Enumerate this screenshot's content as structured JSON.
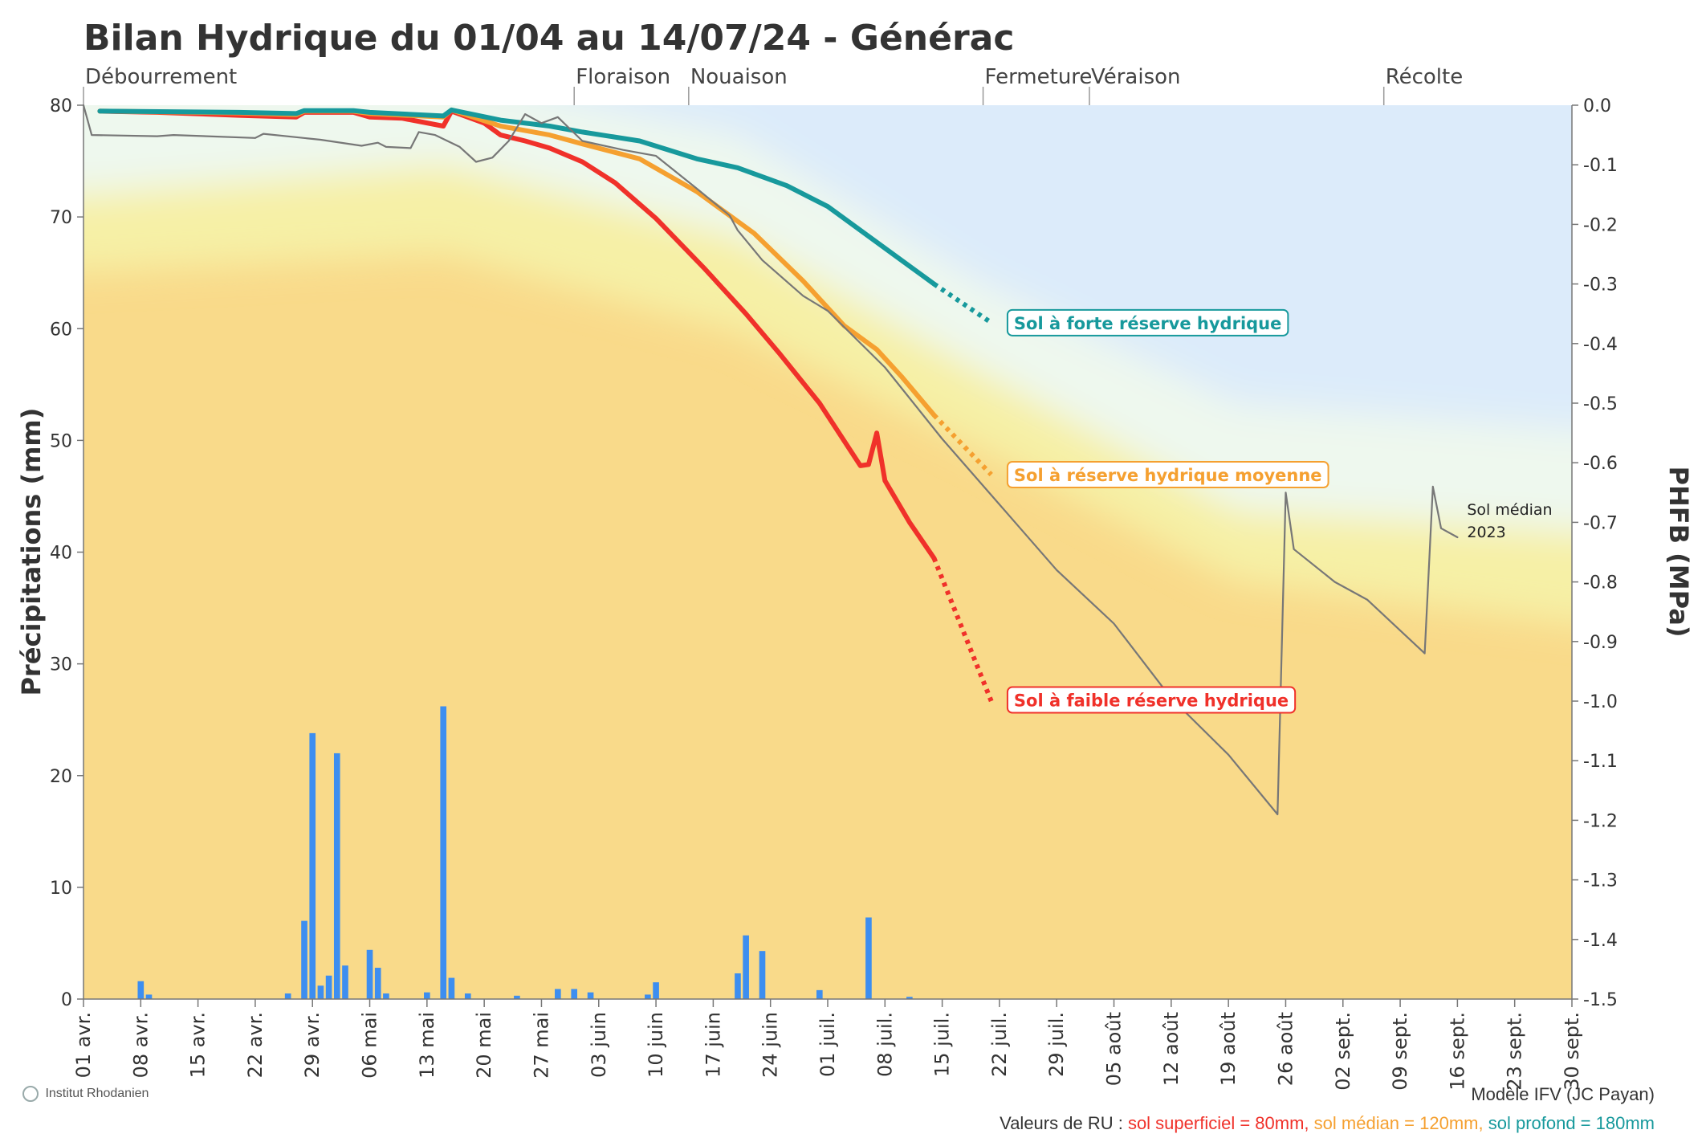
{
  "chart_data": {
    "type": "line",
    "title": "Bilan Hydrique du 01/04 au 14/07/24 - Générac",
    "ylabel": "Précipitations (mm)",
    "y2label": "PHFB (MPa)",
    "ylim": [
      0,
      80
    ],
    "y2lim": [
      -1.5,
      0.0
    ],
    "xlim": [
      "2024-04-01",
      "2024-09-30"
    ],
    "x_ticks": [
      "01 avr.",
      "08 avr.",
      "15 avr.",
      "22 avr.",
      "29 avr.",
      "06 mai",
      "13 mai",
      "20 mai",
      "27 mai",
      "03 juin",
      "10 juin",
      "17 juin",
      "24 juin",
      "01 juil.",
      "08 juil.",
      "15 juil.",
      "22 juil.",
      "29 juil.",
      "05 août",
      "12 août",
      "19 août",
      "26 août",
      "02 sept.",
      "09 sept.",
      "16 sept.",
      "23 sept.",
      "30 sept."
    ],
    "y_ticks": [
      0,
      10,
      20,
      30,
      40,
      50,
      60,
      70,
      80
    ],
    "y2_ticks": [
      "0.0",
      "-0.1",
      "-0.2",
      "-0.3",
      "-0.4",
      "-0.5",
      "-0.6",
      "-0.7",
      "-0.8",
      "-0.9",
      "-1.0",
      "-1.1",
      "-1.2",
      "-1.3",
      "-1.4",
      "-1.5"
    ],
    "stages": [
      {
        "name": "Débourrement",
        "date": "2024-04-01"
      },
      {
        "name": "Floraison",
        "date": "2024-05-31"
      },
      {
        "name": "Nouaison",
        "date": "2024-06-14"
      },
      {
        "name": "Fermeture",
        "date": "2024-07-20"
      },
      {
        "name": "Véraison",
        "date": "2024-08-02"
      },
      {
        "name": "Récolte",
        "date": "2024-09-07"
      }
    ],
    "precipitation": [
      {
        "date": "2024-04-08",
        "mm": 1.6
      },
      {
        "date": "2024-04-09",
        "mm": 0.4
      },
      {
        "date": "2024-04-26",
        "mm": 0.5
      },
      {
        "date": "2024-04-28",
        "mm": 7.0
      },
      {
        "date": "2024-04-29",
        "mm": 23.8
      },
      {
        "date": "2024-04-30",
        "mm": 1.2
      },
      {
        "date": "2024-05-01",
        "mm": 2.1
      },
      {
        "date": "2024-05-02",
        "mm": 22.0
      },
      {
        "date": "2024-05-03",
        "mm": 3.0
      },
      {
        "date": "2024-05-06",
        "mm": 4.4
      },
      {
        "date": "2024-05-07",
        "mm": 2.8
      },
      {
        "date": "2024-05-08",
        "mm": 0.5
      },
      {
        "date": "2024-05-13",
        "mm": 0.6
      },
      {
        "date": "2024-05-15",
        "mm": 26.2
      },
      {
        "date": "2024-05-16",
        "mm": 1.9
      },
      {
        "date": "2024-05-18",
        "mm": 0.5
      },
      {
        "date": "2024-05-24",
        "mm": 0.3
      },
      {
        "date": "2024-05-29",
        "mm": 0.9
      },
      {
        "date": "2024-05-31",
        "mm": 0.9
      },
      {
        "date": "2024-06-02",
        "mm": 0.6
      },
      {
        "date": "2024-06-09",
        "mm": 0.4
      },
      {
        "date": "2024-06-10",
        "mm": 1.5
      },
      {
        "date": "2024-06-20",
        "mm": 2.3
      },
      {
        "date": "2024-06-21",
        "mm": 5.7
      },
      {
        "date": "2024-06-23",
        "mm": 4.3
      },
      {
        "date": "2024-06-30",
        "mm": 0.8
      },
      {
        "date": "2024-07-06",
        "mm": 7.3
      },
      {
        "date": "2024-07-11",
        "mm": 0.2
      }
    ],
    "series": [
      {
        "name": "Sol à faible réserve hydrique",
        "color": "#f0312a",
        "values": [
          [
            "2024-04-03",
            -0.01
          ],
          [
            "2024-04-10",
            -0.012
          ],
          [
            "2024-04-20",
            -0.017
          ],
          [
            "2024-04-27",
            -0.02
          ],
          [
            "2024-04-28",
            -0.012
          ],
          [
            "2024-05-04",
            -0.012
          ],
          [
            "2024-05-06",
            -0.02
          ],
          [
            "2024-05-10",
            -0.022
          ],
          [
            "2024-05-15",
            -0.035
          ],
          [
            "2024-05-16",
            -0.01
          ],
          [
            "2024-05-20",
            -0.03
          ],
          [
            "2024-05-22",
            -0.05
          ],
          [
            "2024-05-25",
            -0.06
          ],
          [
            "2024-05-28",
            -0.072
          ],
          [
            "2024-06-01",
            -0.095
          ],
          [
            "2024-06-05",
            -0.13
          ],
          [
            "2024-06-10",
            -0.19
          ],
          [
            "2024-06-16",
            -0.275
          ],
          [
            "2024-06-21",
            -0.35
          ],
          [
            "2024-06-25",
            -0.415
          ],
          [
            "2024-06-30",
            -0.5
          ],
          [
            "2024-07-05",
            -0.605
          ],
          [
            "2024-07-06",
            -0.603
          ],
          [
            "2024-07-07",
            -0.55
          ],
          [
            "2024-07-08",
            -0.63
          ],
          [
            "2024-07-11",
            -0.7
          ],
          [
            "2024-07-14",
            -0.76
          ]
        ],
        "forecast": [
          [
            "2024-07-14",
            -0.76
          ],
          [
            "2024-07-21",
            -1.0
          ]
        ],
        "label_date": "2024-07-22",
        "label_value": -0.998
      },
      {
        "name": "Sol à réserve hydrique moyenne",
        "color": "#f5a030",
        "values": [
          [
            "2024-04-03",
            -0.01
          ],
          [
            "2024-04-20",
            -0.013
          ],
          [
            "2024-04-27",
            -0.016
          ],
          [
            "2024-04-28",
            -0.01
          ],
          [
            "2024-05-04",
            -0.01
          ],
          [
            "2024-05-06",
            -0.014
          ],
          [
            "2024-05-15",
            -0.02
          ],
          [
            "2024-05-16",
            -0.008
          ],
          [
            "2024-05-22",
            -0.035
          ],
          [
            "2024-05-28",
            -0.05
          ],
          [
            "2024-06-01",
            -0.065
          ],
          [
            "2024-06-08",
            -0.09
          ],
          [
            "2024-06-15",
            -0.145
          ],
          [
            "2024-06-22",
            -0.215
          ],
          [
            "2024-06-28",
            -0.295
          ],
          [
            "2024-07-03",
            -0.37
          ],
          [
            "2024-07-07",
            -0.41
          ],
          [
            "2024-07-10",
            -0.455
          ],
          [
            "2024-07-14",
            -0.52
          ]
        ],
        "forecast": [
          [
            "2024-07-14",
            -0.52
          ],
          [
            "2024-07-21",
            -0.62
          ]
        ],
        "label_date": "2024-07-22",
        "label_value": -0.62
      },
      {
        "name": "Sol à forte réserve hydrique",
        "color": "#17999c",
        "values": [
          [
            "2024-04-03",
            -0.01
          ],
          [
            "2024-04-20",
            -0.012
          ],
          [
            "2024-04-27",
            -0.014
          ],
          [
            "2024-04-28",
            -0.009
          ],
          [
            "2024-05-04",
            -0.009
          ],
          [
            "2024-05-06",
            -0.012
          ],
          [
            "2024-05-15",
            -0.018
          ],
          [
            "2024-05-16",
            -0.008
          ],
          [
            "2024-05-22",
            -0.025
          ],
          [
            "2024-05-28",
            -0.035
          ],
          [
            "2024-06-01",
            -0.045
          ],
          [
            "2024-06-08",
            -0.06
          ],
          [
            "2024-06-15",
            -0.09
          ],
          [
            "2024-06-20",
            -0.105
          ],
          [
            "2024-06-26",
            -0.135
          ],
          [
            "2024-07-01",
            -0.17
          ],
          [
            "2024-07-06",
            -0.22
          ],
          [
            "2024-07-10",
            -0.26
          ],
          [
            "2024-07-14",
            -0.3
          ]
        ],
        "forecast": [
          [
            "2024-07-14",
            -0.3
          ],
          [
            "2024-07-21",
            -0.365
          ]
        ],
        "label_date": "2024-07-22",
        "label_value": -0.365
      },
      {
        "name": "Sol médian 2023",
        "color": "#777777",
        "values": [
          [
            "2024-04-01",
            0.0
          ],
          [
            "2024-04-02",
            -0.05
          ],
          [
            "2024-04-10",
            -0.052
          ],
          [
            "2024-04-12",
            -0.05
          ],
          [
            "2024-04-22",
            -0.055
          ],
          [
            "2024-04-23",
            -0.048
          ],
          [
            "2024-04-30",
            -0.058
          ],
          [
            "2024-05-05",
            -0.068
          ],
          [
            "2024-05-07",
            -0.063
          ],
          [
            "2024-05-08",
            -0.07
          ],
          [
            "2024-05-11",
            -0.072
          ],
          [
            "2024-05-12",
            -0.045
          ],
          [
            "2024-05-14",
            -0.05
          ],
          [
            "2024-05-17",
            -0.07
          ],
          [
            "2024-05-19",
            -0.095
          ],
          [
            "2024-05-21",
            -0.088
          ],
          [
            "2024-05-23",
            -0.06
          ],
          [
            "2024-05-25",
            -0.015
          ],
          [
            "2024-05-27",
            -0.03
          ],
          [
            "2024-05-29",
            -0.02
          ],
          [
            "2024-06-01",
            -0.06
          ],
          [
            "2024-06-06",
            -0.075
          ],
          [
            "2024-06-10",
            -0.085
          ],
          [
            "2024-06-15",
            -0.14
          ],
          [
            "2024-06-19",
            -0.185
          ],
          [
            "2024-06-20",
            -0.21
          ],
          [
            "2024-06-23",
            -0.26
          ],
          [
            "2024-06-28",
            -0.32
          ],
          [
            "2024-07-01",
            -0.345
          ],
          [
            "2024-07-08",
            -0.44
          ],
          [
            "2024-07-15",
            -0.56
          ],
          [
            "2024-07-22",
            -0.67
          ],
          [
            "2024-07-29",
            -0.78
          ],
          [
            "2024-08-05",
            -0.87
          ],
          [
            "2024-08-12",
            -0.995
          ],
          [
            "2024-08-19",
            -1.09
          ],
          [
            "2024-08-25",
            -1.19
          ],
          [
            "2024-08-26",
            -0.65
          ],
          [
            "2024-08-27",
            -0.745
          ],
          [
            "2024-09-01",
            -0.8
          ],
          [
            "2024-09-05",
            -0.83
          ],
          [
            "2024-09-12",
            -0.92
          ],
          [
            "2024-09-13",
            -0.64
          ],
          [
            "2024-09-14",
            -0.71
          ],
          [
            "2024-09-16",
            -0.725
          ]
        ],
        "label_lines": [
          "Sol médian",
          "2023"
        ]
      }
    ],
    "background_bands": [
      {
        "color": "#dcebfa"
      },
      {
        "color": "#eef8ee"
      },
      {
        "color": "#f6f0a6"
      },
      {
        "color": "#f9da8a"
      }
    ],
    "grid": false
  },
  "footer": {
    "model": "Modèle IFV (JC Payan)",
    "ru_prefix": "Valeurs de RU :",
    "ru_low": "sol superficiel = 80mm,",
    "ru_mid": "sol médian = 120mm,",
    "ru_high": "sol profond = 180mm"
  },
  "logo": {
    "name": "Institut Rhodanien"
  },
  "colors": {
    "low": "#f0312a",
    "mid": "#f5a030",
    "high": "#17999c",
    "median": "#777777",
    "bars": "#3d8ef0"
  }
}
